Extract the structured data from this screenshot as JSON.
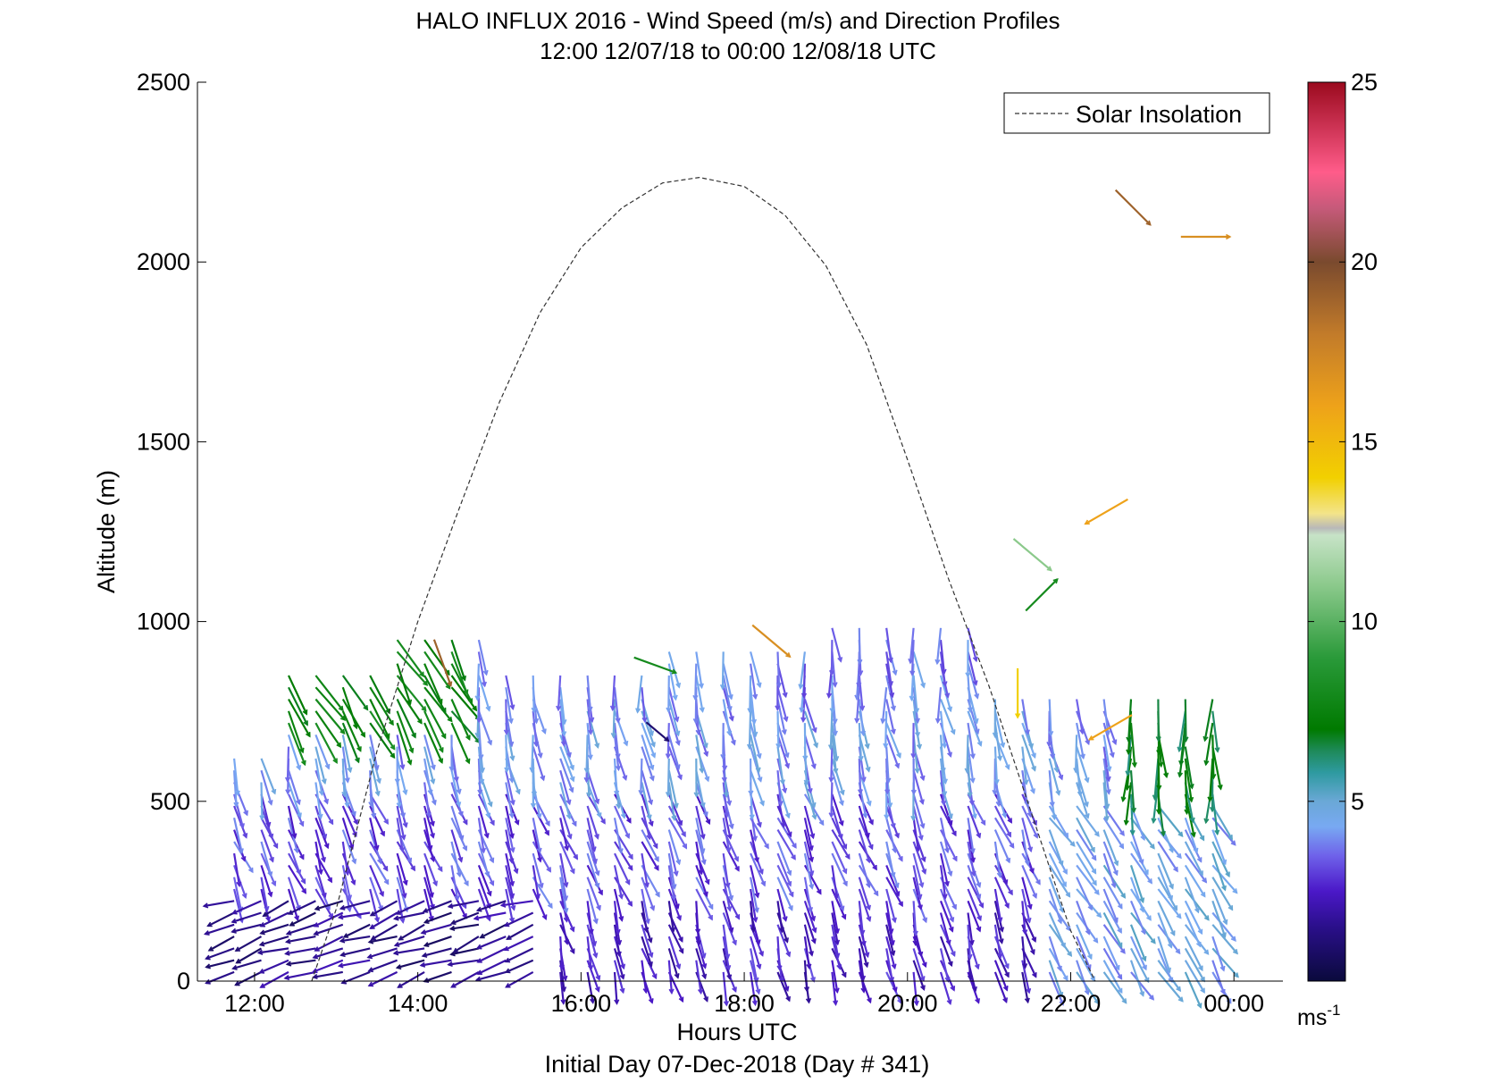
{
  "chart_data": {
    "type": "vector_field",
    "title": "HALO INFLUX 2016 - Wind Speed (m/s) and Direction Profiles",
    "subtitle": "12:00 12/07/18 to 00:00 12/08/18  UTC",
    "xlabel": "Hours UTC",
    "xlabel2": "Initial Day 07-Dec-2018 (Day # 341)",
    "ylabel": "Altitude (m)",
    "xlim": [
      11.3,
      24.6
    ],
    "ylim": [
      0,
      2500
    ],
    "x_ticks": [
      12,
      14,
      16,
      18,
      20,
      22,
      24
    ],
    "x_tick_labels": [
      "12:00",
      "14:00",
      "16:00",
      "18:00",
      "20:00",
      "22:00",
      "00:00"
    ],
    "y_ticks": [
      0,
      500,
      1000,
      1500,
      2000,
      2500
    ],
    "y_tick_labels": [
      "0",
      "500",
      "1000",
      "1500",
      "2000",
      "2500"
    ],
    "legend": {
      "label": "Solar Insolation",
      "position": "top-right",
      "style": "dashed"
    },
    "solar_insolation": {
      "x": [
        12.7,
        13.0,
        13.5,
        14.0,
        14.5,
        15.0,
        15.5,
        16.0,
        16.5,
        17.0,
        17.45,
        18.0,
        18.5,
        19.0,
        19.5,
        20.0,
        20.5,
        21.0,
        21.5,
        22.0,
        22.3
      ],
      "y": [
        0,
        200,
        640,
        1000,
        1310,
        1610,
        1860,
        2040,
        2150,
        2220,
        2235,
        2210,
        2130,
        1990,
        1770,
        1450,
        1120,
        820,
        480,
        140,
        0
      ]
    },
    "colorbar": {
      "ticks": [
        5,
        10,
        15,
        20,
        25
      ],
      "tick_labels": [
        "5",
        "10",
        "15",
        "20",
        "25"
      ],
      "range": [
        0,
        25
      ],
      "unit": "ms",
      "unit_exp": "-1",
      "stops": [
        [
          0,
          "#0a0a3c"
        ],
        [
          1.5,
          "#2a0f8a"
        ],
        [
          2.5,
          "#4b18c8"
        ],
        [
          3.5,
          "#6f63ea"
        ],
        [
          4.3,
          "#78a9f2"
        ],
        [
          5.0,
          "#6aa8d6"
        ],
        [
          5.8,
          "#2e9aa0"
        ],
        [
          6.4,
          "#1e8a5a"
        ],
        [
          7.0,
          "#007a00"
        ],
        [
          9.0,
          "#2a9a3a"
        ],
        [
          11.0,
          "#8bc98b"
        ],
        [
          12.4,
          "#c7e3c7"
        ],
        [
          12.6,
          "#b8b8b8"
        ],
        [
          13.0,
          "#f3e48a"
        ],
        [
          14.0,
          "#f2d000"
        ],
        [
          16.0,
          "#eea21a"
        ],
        [
          18.0,
          "#c27b2a"
        ],
        [
          20.0,
          "#7a4a2e"
        ],
        [
          21.5,
          "#c65a7a"
        ],
        [
          22.5,
          "#ff5c8a"
        ],
        [
          25.0,
          "#9a0a1e"
        ]
      ]
    },
    "wind_vectors": {
      "time_start": 11.75,
      "time_step": 0.333,
      "time_end": 23.75,
      "altitude_step": 33,
      "altitude_max": 1000,
      "speed_unit": "m/s",
      "description_regimes": [
        {
          "alt_range": [
            0,
            250
          ],
          "time_range": [
            11.75,
            15.5
          ],
          "speed": 1.5,
          "direction_deg": 200
        },
        {
          "alt_range": [
            0,
            250
          ],
          "time_range": [
            15.5,
            21.5
          ],
          "speed": 2.5,
          "direction_deg": 285
        },
        {
          "alt_range": [
            0,
            500
          ],
          "time_range": [
            21.5,
            23.75
          ],
          "speed": 4.5,
          "direction_deg": 300
        },
        {
          "alt_range": [
            250,
            550
          ],
          "time_range": [
            11.75,
            21.5
          ],
          "speed": 3.2,
          "direction_deg": 290
        },
        {
          "alt_range": [
            550,
            800
          ],
          "time_range": [
            11.75,
            23.75
          ],
          "speed": 4.2,
          "direction_deg": 280
        },
        {
          "alt_range": [
            800,
            1000
          ],
          "time_range": [
            13.0,
            21.5
          ],
          "speed": 3.8,
          "direction_deg": 275
        },
        {
          "alt_range": [
            500,
            850
          ],
          "time_range": [
            22.5,
            23.75
          ],
          "speed": 6.8,
          "direction_deg": 270
        },
        {
          "alt_range": [
            700,
            950
          ],
          "time_range": [
            11.75,
            14.5
          ],
          "speed": 7.5,
          "direction_deg": 300
        }
      ],
      "isolated": [
        {
          "t": 22.55,
          "alt": 2200,
          "speed": 19,
          "direction_deg": 315
        },
        {
          "t": 23.35,
          "alt": 2070,
          "speed": 17,
          "direction_deg": 0
        },
        {
          "t": 22.7,
          "alt": 1340,
          "speed": 16,
          "direction_deg": 210
        },
        {
          "t": 21.3,
          "alt": 1230,
          "speed": 11,
          "direction_deg": 320
        },
        {
          "t": 21.45,
          "alt": 1030,
          "speed": 8,
          "direction_deg": 45
        },
        {
          "t": 18.1,
          "alt": 990,
          "speed": 17,
          "direction_deg": 320
        },
        {
          "t": 14.2,
          "alt": 950,
          "speed": 19,
          "direction_deg": 290
        },
        {
          "t": 21.35,
          "alt": 870,
          "speed": 14,
          "direction_deg": 270
        },
        {
          "t": 16.8,
          "alt": 720,
          "speed": 1.0,
          "direction_deg": 320
        },
        {
          "t": 16.65,
          "alt": 900,
          "speed": 8,
          "direction_deg": 340
        },
        {
          "t": 22.75,
          "alt": 740,
          "speed": 16,
          "direction_deg": 210
        }
      ]
    }
  }
}
